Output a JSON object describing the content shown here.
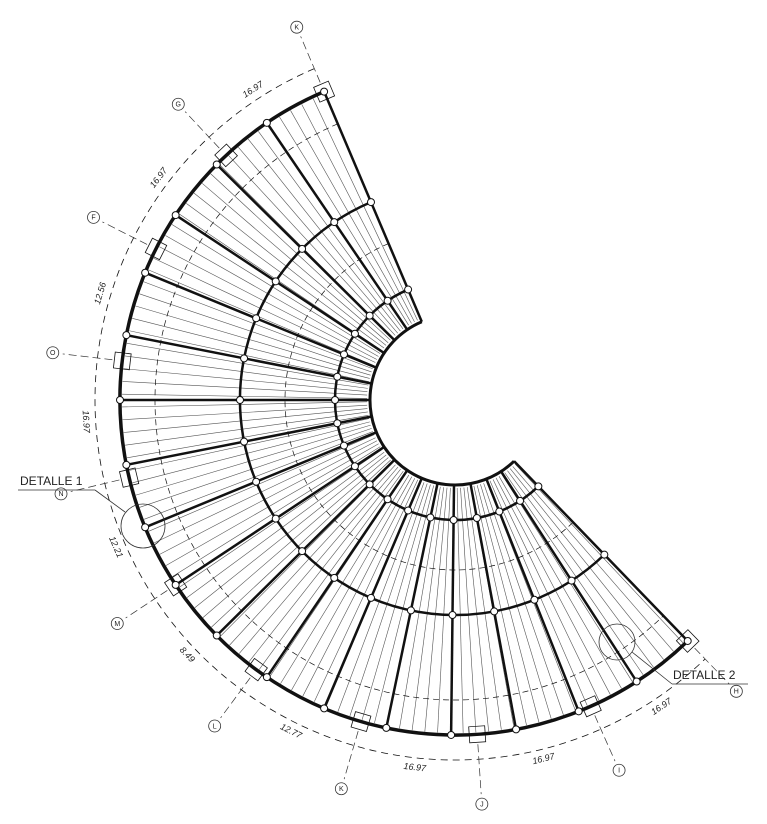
{
  "axes": [
    "K",
    "G",
    "F",
    "O",
    "N",
    "M",
    "L",
    "K",
    "J",
    "I",
    "H"
  ],
  "dimensions": [
    "16.97",
    "16.97",
    "12.56",
    "16.97",
    "12.21",
    "8.49",
    "12.77",
    "16.97",
    "16.97",
    "16.97"
  ],
  "details": [
    "DETALLE 1",
    "DETALLE 2"
  ]
}
